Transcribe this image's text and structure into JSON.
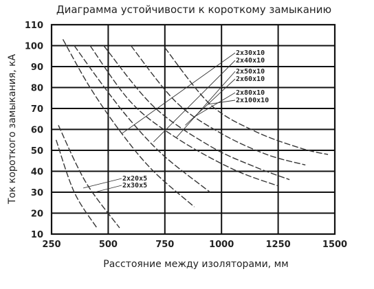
{
  "chart_data": {
    "type": "line",
    "title": "Диаграмма устойчивости к короткому замыканию",
    "xlabel": "Расстояние между изоляторами, мм",
    "ylabel": "Ток короткого замыкания, кА",
    "xlim": [
      250,
      1500
    ],
    "ylim": [
      10,
      110
    ],
    "xticks": [
      "250",
      "500",
      "750",
      "1000",
      "1250",
      "1500"
    ],
    "yticks": [
      "10",
      "20",
      "30",
      "40",
      "50",
      "60",
      "70",
      "80",
      "90",
      "100",
      "110"
    ],
    "grid": true,
    "line_style": "dashed",
    "line_color": "#333333",
    "series": [
      {
        "name": "2x20x5",
        "x": [
          270,
          350,
          450
        ],
        "y": [
          55,
          30,
          13
        ]
      },
      {
        "name": "2x30x5",
        "x": [
          280,
          400,
          550
        ],
        "y": [
          62,
          35,
          13
        ]
      },
      {
        "name": "2x30x10",
        "x": [
          300,
          420,
          560,
          700,
          880
        ],
        "y": [
          103,
          80,
          58,
          40,
          23
        ]
      },
      {
        "name": "2x40x10",
        "x": [
          350,
          470,
          600,
          750,
          950
        ],
        "y": [
          100,
          82,
          64,
          47,
          30
        ]
      },
      {
        "name": "2x50x10",
        "x": [
          420,
          600,
          800,
          1050,
          1250
        ],
        "y": [
          100,
          73,
          56,
          41,
          33
        ]
      },
      {
        "name": "2x60x10",
        "x": [
          480,
          700,
          950,
          1150,
          1300
        ],
        "y": [
          100,
          71,
          52,
          42,
          36
        ]
      },
      {
        "name": "2x80x10",
        "x": [
          600,
          800,
          1000,
          1200,
          1370
        ],
        "y": [
          100,
          73,
          58,
          48,
          43
        ]
      },
      {
        "name": "2x100x10",
        "x": [
          750,
          950,
          1150,
          1350,
          1470
        ],
        "y": [
          99,
          72,
          59,
          51,
          48
        ]
      }
    ],
    "labels": [
      "2x30x10",
      "2x40x10",
      "2x50x10",
      "2x60x10",
      "2x80x10",
      "2x100x10",
      "2x20x5",
      "2x30x5"
    ]
  }
}
